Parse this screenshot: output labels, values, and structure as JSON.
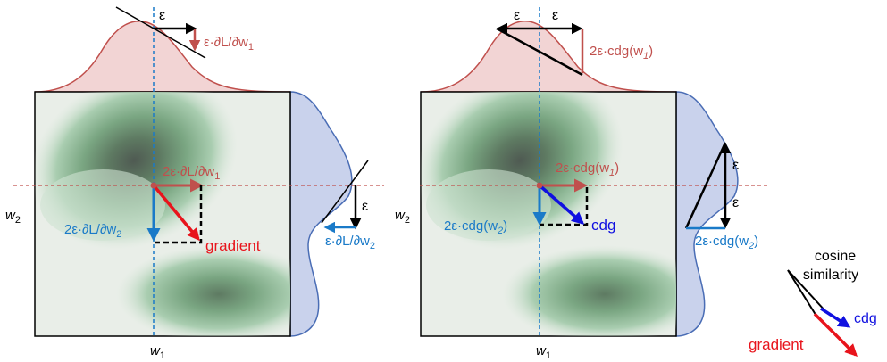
{
  "colors": {
    "red_marginal": "#c0504d",
    "red_fill": "#f2d4d4",
    "blue_marginal": "#4a6db5",
    "blue_fill": "#c9d2ec",
    "grad_red": "#e8141c",
    "cdg_blue": "#1010e0",
    "teal_blue": "#1a7ac8",
    "dark_red_text": "#c0504d",
    "contour_green": "#2e8b57",
    "plot_bg": "#e9eee8"
  },
  "left_panel": {
    "top_eps": "ε",
    "top_slope": "ε·∂L/∂w",
    "top_slope_sub": "1",
    "right_eps": "ε",
    "right_slope": "ε·∂L/∂w",
    "right_slope_sub": "2",
    "center_h": "2ε·∂L/∂w",
    "center_h_sub": "1",
    "center_v": "2ε·∂L/∂w",
    "center_v_sub": "2",
    "vector_label": "gradient",
    "x_axis": "w",
    "x_axis_sub": "1",
    "y_axis": "w",
    "y_axis_sub": "2"
  },
  "right_panel": {
    "top_eps_left": "ε",
    "top_eps_right": "ε",
    "top_slope": "2ε·cdg(w",
    "top_slope_sub": "1",
    "top_slope_close": ")",
    "right_eps_top": "ε",
    "right_eps_bottom": "ε",
    "right_slope": "2ε·cdg(w",
    "right_slope_sub": "2",
    "right_slope_close": ")",
    "center_h": "2ε·cdg(w",
    "center_h_sub": "1",
    "center_h_close": ")",
    "center_v": "2ε·cdg(w",
    "center_v_sub": "2",
    "center_v_close": ")",
    "vector_label": "cdg",
    "x_axis": "w",
    "x_axis_sub": "1",
    "y_axis": "w",
    "y_axis_sub": "2"
  },
  "legend": {
    "title_line1": "cosine",
    "title_line2": "similarity",
    "cdg": "cdg",
    "gradient": "gradient"
  }
}
